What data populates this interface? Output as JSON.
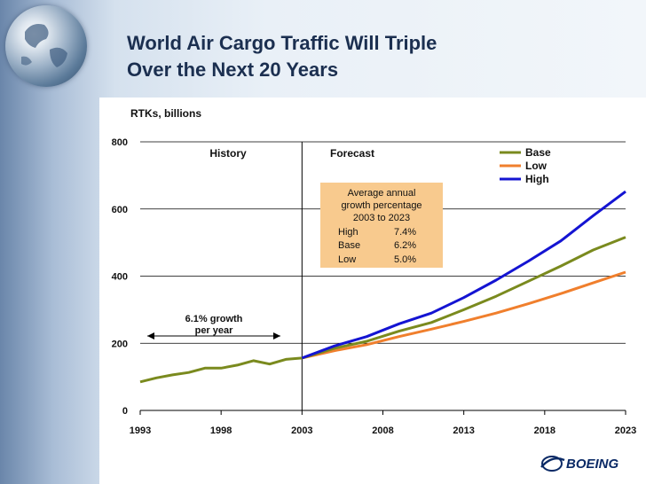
{
  "slide": {
    "title_line1": "World Air Cargo Traffic Will Triple",
    "title_line2": "Over the Next 20 Years",
    "units_label": "RTKs, billions",
    "logo_text": "BOEING",
    "logo_icon": "boeing-logo-icon",
    "globe_icon": "globe-icon"
  },
  "chart_data": {
    "type": "line",
    "ylim": [
      0,
      800
    ],
    "xlim": [
      1993,
      2023
    ],
    "y_ticks": [
      0,
      200,
      400,
      600,
      800
    ],
    "x_ticks": [
      1993,
      1998,
      2003,
      2008,
      2013,
      2018,
      2023
    ],
    "grid": true,
    "legend_position": "top-right",
    "divider_x": 2003,
    "region_labels": {
      "history": "History",
      "forecast": "Forecast"
    },
    "growth_annotation": {
      "line1": "6.1% growth",
      "line2": "per year"
    },
    "inset": {
      "header_line1": "Average annual",
      "header_line2": "growth percentage",
      "header_line3": "2003 to 2023",
      "rows": [
        {
          "label": "High",
          "value": "7.4%"
        },
        {
          "label": "Base",
          "value": "6.2%"
        },
        {
          "label": "Low",
          "value": "5.0%"
        }
      ]
    },
    "history": {
      "color": "#7a8a1e",
      "x": [
        1993,
        1994,
        1995,
        1996,
        1997,
        1998,
        1999,
        2000,
        2001,
        2002,
        2003
      ],
      "values": [
        85,
        97,
        106,
        113,
        126,
        126,
        135,
        148,
        138,
        152,
        156
      ]
    },
    "series": [
      {
        "name": "Base",
        "color": "#7a8a1e",
        "x": [
          2003,
          2005,
          2007,
          2009,
          2011,
          2013,
          2015,
          2017,
          2019,
          2021,
          2023
        ],
        "values": [
          156,
          185,
          206,
          236,
          262,
          300,
          340,
          385,
          430,
          478,
          516
        ]
      },
      {
        "name": "Low",
        "color": "#f07f2d",
        "x": [
          2003,
          2005,
          2007,
          2009,
          2011,
          2013,
          2015,
          2017,
          2019,
          2021,
          2023
        ],
        "values": [
          156,
          178,
          196,
          220,
          242,
          265,
          290,
          318,
          348,
          380,
          412
        ]
      },
      {
        "name": "High",
        "color": "#1414d2",
        "x": [
          2003,
          2005,
          2007,
          2009,
          2011,
          2013,
          2015,
          2017,
          2019,
          2021,
          2023
        ],
        "values": [
          156,
          192,
          220,
          258,
          290,
          336,
          388,
          445,
          505,
          580,
          652
        ]
      }
    ]
  }
}
